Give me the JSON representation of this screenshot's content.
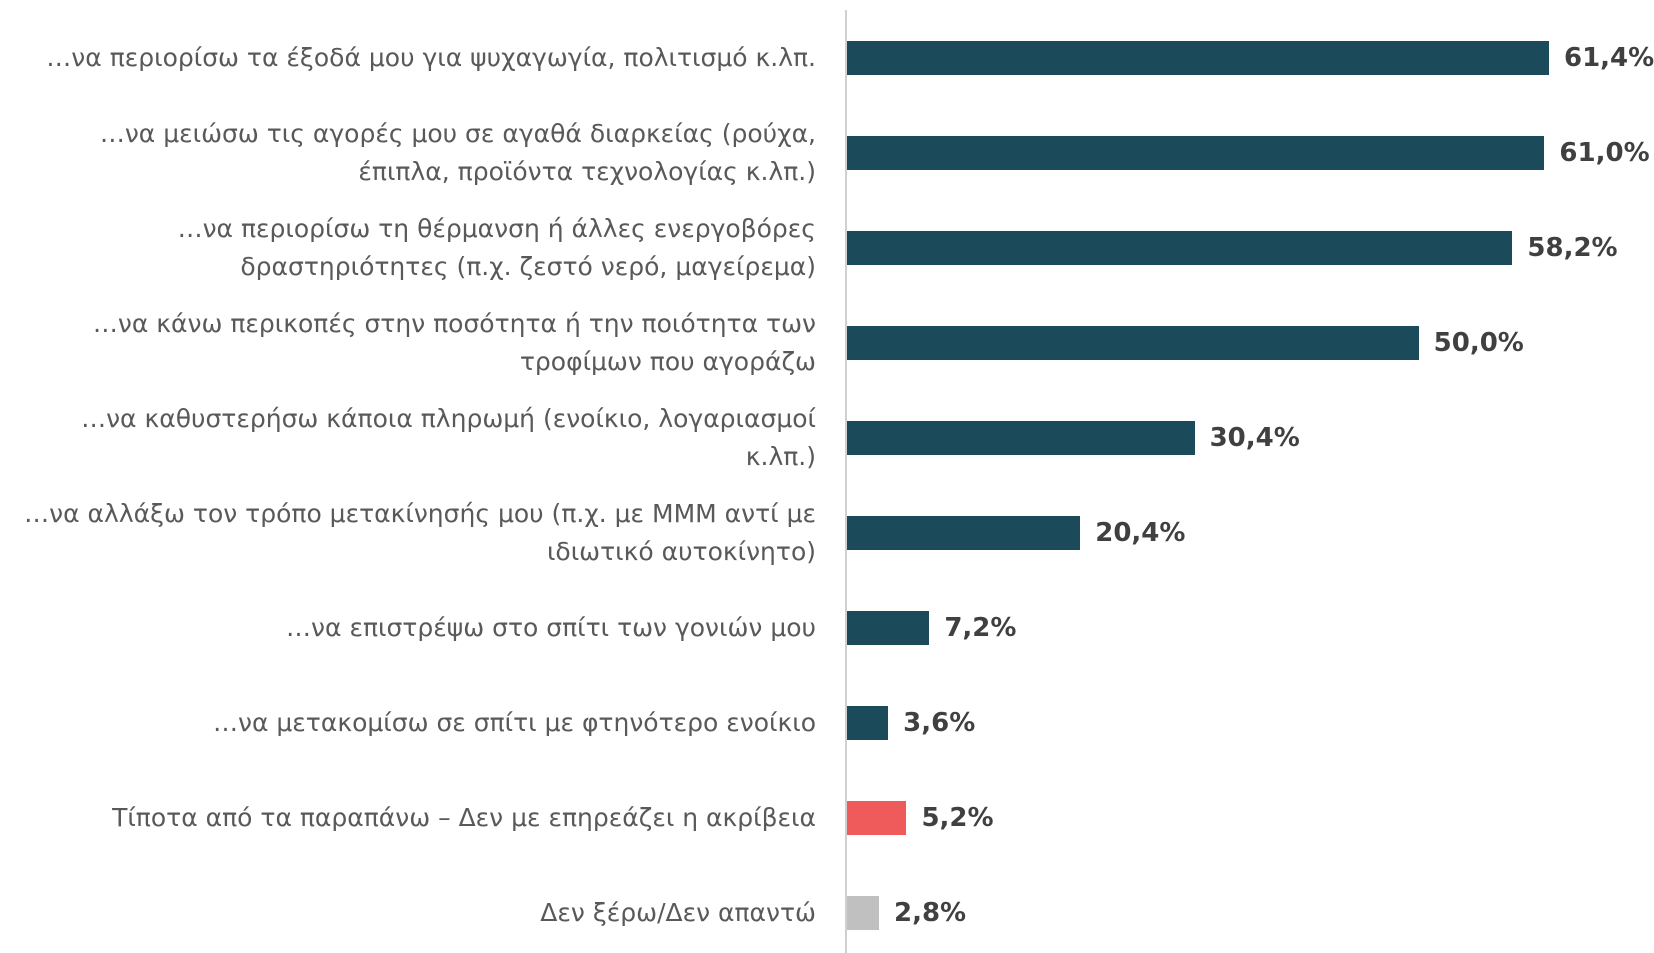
{
  "chart_data": {
    "type": "bar",
    "orientation": "horizontal",
    "categories": [
      "…να περιορίσω τα έξοδά μου για ψυχαγωγία, πολιτισμό κ.λπ.",
      "…να μειώσω τις αγορές μου σε αγαθά διαρκείας (ρούχα, έπιπλα, προϊόντα τεχνολογίας κ.λπ.)",
      "…να περιορίσω τη θέρμανση ή άλλες ενεργοβόρες δραστηριότητες (π.χ. ζεστό νερό, μαγείρεμα)",
      "…να κάνω περικοπές στην ποσότητα ή την ποιότητα των τροφίμων που αγοράζω",
      "…να καθυστερήσω κάποια πληρωμή (ενοίκιο, λογαριασμοί κ.λπ.)",
      "…να αλλάξω τον τρόπο μετακίνησής μου (π.χ. με ΜΜΜ αντί με ιδιωτικό αυτοκίνητο)",
      "…να επιστρέψω στο σπίτι των γονιών μου",
      "…να μετακομίσω σε σπίτι με φτηνότερο ενοίκιο",
      "Τίποτα από τα παραπάνω – Δεν με επηρεάζει η ακρίβεια",
      "Δεν ξέρω/Δεν απαντώ"
    ],
    "values": [
      61.4,
      61.0,
      58.2,
      50.0,
      30.4,
      20.4,
      7.2,
      3.6,
      5.2,
      2.8
    ],
    "value_labels": [
      "61,4%",
      "61,0%",
      "58,2%",
      "50,0%",
      "30,4%",
      "20,4%",
      "7,2%",
      "3,6%",
      "5,2%",
      "2,8%"
    ],
    "colors": [
      "#1b4b5a",
      "#1b4b5a",
      "#1b4b5a",
      "#1b4b5a",
      "#1b4b5a",
      "#1b4b5a",
      "#1b4b5a",
      "#1b4b5a",
      "#ef5b5b",
      "#c0c0c0"
    ]
  }
}
